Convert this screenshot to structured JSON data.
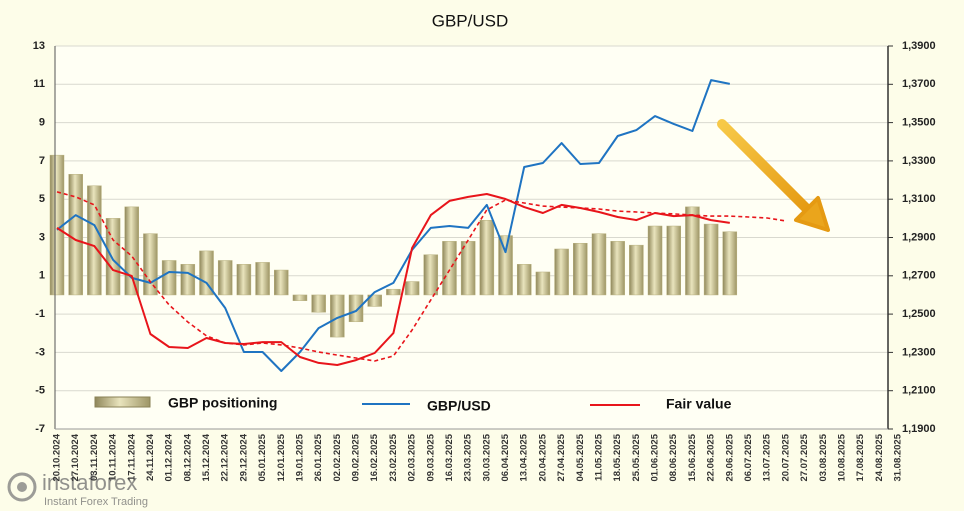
{
  "chart_data": {
    "type": "combo",
    "title": "GBP/USD",
    "categories": [
      "20.10.2024",
      "27.10.2024",
      "03.11.2024",
      "10.11.2024",
      "17.11.2024",
      "24.11.2024",
      "01.12.2024",
      "08.12.2024",
      "15.12.2024",
      "22.12.2024",
      "29.12.2024",
      "05.01.2025",
      "12.01.2025",
      "19.01.2025",
      "26.01.2025",
      "02.02.2025",
      "09.02.2025",
      "16.02.2025",
      "23.02.2025",
      "02.03.2025",
      "09.03.2025",
      "16.03.2025",
      "23.03.2025",
      "30.03.2025",
      "06.04.2025",
      "13.04.2025",
      "20.04.2025",
      "27.04.2025",
      "04.05.2025",
      "11.05.2025",
      "18.05.2025",
      "25.05.2025",
      "01.06.2025",
      "08.06.2025",
      "15.06.2025",
      "22.06.2025",
      "29.06.2025",
      "06.07.2025",
      "13.07.2025",
      "20.07.2025",
      "27.07.2025",
      "03.08.2025",
      "10.08.2025",
      "17.08.2025",
      "24.08.2025",
      "31.08.2025"
    ],
    "series": [
      {
        "name": "GBP positioning",
        "type": "bar",
        "axis": "y",
        "color": "#b8b07e",
        "values": [
          7.3,
          6.3,
          5.7,
          4.0,
          4.6,
          3.2,
          1.8,
          1.6,
          2.3,
          1.8,
          1.6,
          1.7,
          1.3,
          -0.3,
          -0.9,
          -2.2,
          -1.4,
          -0.6,
          0.3,
          0.7,
          2.1,
          2.8,
          2.8,
          3.9,
          3.1,
          1.6,
          1.2,
          2.4,
          2.7,
          3.2,
          2.8,
          2.6,
          3.6,
          3.6,
          4.6,
          3.7,
          3.3,
          null,
          null,
          null,
          null,
          null,
          null,
          null,
          null,
          null
        ]
      },
      {
        "name": "GBP/USD",
        "type": "line",
        "axis": "y2",
        "color": "#1f74c2",
        "values": [
          1.294,
          1.3017,
          1.2965,
          1.2783,
          1.2689,
          1.2663,
          1.272,
          1.2715,
          1.2663,
          1.2532,
          1.2302,
          1.2302,
          1.2203,
          1.2302,
          1.2427,
          1.248,
          1.2516,
          1.2615,
          1.2663,
          1.2835,
          1.295,
          1.296,
          1.295,
          1.307,
          1.2824,
          1.3268,
          1.3289,
          1.3393,
          1.3284,
          1.3289,
          1.343,
          1.3461,
          1.3534,
          1.3493,
          1.3456,
          1.3722,
          1.3702,
          null,
          null,
          null,
          null,
          null,
          null,
          null,
          null,
          null
        ]
      },
      {
        "name": "Fair value",
        "type": "line",
        "axis": "y2",
        "color": "#e8151b",
        "values": [
          1.295,
          1.2887,
          1.2855,
          1.273,
          1.2699,
          1.2396,
          1.2328,
          1.2323,
          1.2375,
          1.2349,
          1.2344,
          1.2354,
          1.2354,
          1.2276,
          1.2245,
          1.2234,
          1.226,
          1.2297,
          1.2401,
          1.2845,
          1.3017,
          1.3091,
          1.3112,
          1.3127,
          1.3101,
          1.3059,
          1.3028,
          1.307,
          1.3054,
          1.3033,
          1.3007,
          1.2991,
          1.3028,
          1.3012,
          1.3017,
          1.2991,
          1.2976,
          null,
          null,
          null,
          null,
          null,
          null,
          null,
          null,
          null
        ]
      },
      {
        "type": "line",
        "axis": "y2",
        "color": "#e8151b",
        "dashed": true,
        "values": [
          1.3138,
          1.3112,
          1.307,
          1.2887,
          1.2803,
          1.2668,
          1.2548,
          1.2459,
          1.2386,
          1.2349,
          1.2339,
          1.2349,
          1.2339,
          1.2323,
          1.2302,
          1.2286,
          1.2271,
          1.2255,
          1.2281,
          1.2417,
          1.2574,
          1.273,
          1.2887,
          1.3044,
          1.3096,
          1.308,
          1.3064,
          1.3059,
          1.3054,
          1.3049,
          1.3038,
          1.3033,
          1.3028,
          1.3023,
          1.3017,
          1.3012,
          1.3012,
          1.3007,
          1.3002,
          1.2986,
          null,
          null,
          null,
          null,
          null,
          null
        ]
      }
    ],
    "ylim": [
      -7,
      13
    ],
    "yticks": [
      -7,
      -5,
      -3,
      -1,
      1,
      3,
      5,
      7,
      9,
      11,
      13
    ],
    "y2lim": [
      1.19,
      1.39
    ],
    "y2ticks": [
      {
        "value": 1.19,
        "label": "1,1900"
      },
      {
        "value": 1.21,
        "label": "1,2100"
      },
      {
        "value": 1.23,
        "label": "1,2300"
      },
      {
        "value": 1.25,
        "label": "1,2500"
      },
      {
        "value": 1.27,
        "label": "1,2700"
      },
      {
        "value": 1.29,
        "label": "1,2900"
      },
      {
        "value": 1.31,
        "label": "1,3100"
      },
      {
        "value": 1.33,
        "label": "1,3300"
      },
      {
        "value": 1.35,
        "label": "1,3500"
      },
      {
        "value": 1.37,
        "label": "1,3700"
      },
      {
        "value": 1.39,
        "label": "1,3900"
      }
    ],
    "grid": true
  },
  "watermark": {
    "brand": "instaforex",
    "tagline": "Instant Forex Trading"
  }
}
